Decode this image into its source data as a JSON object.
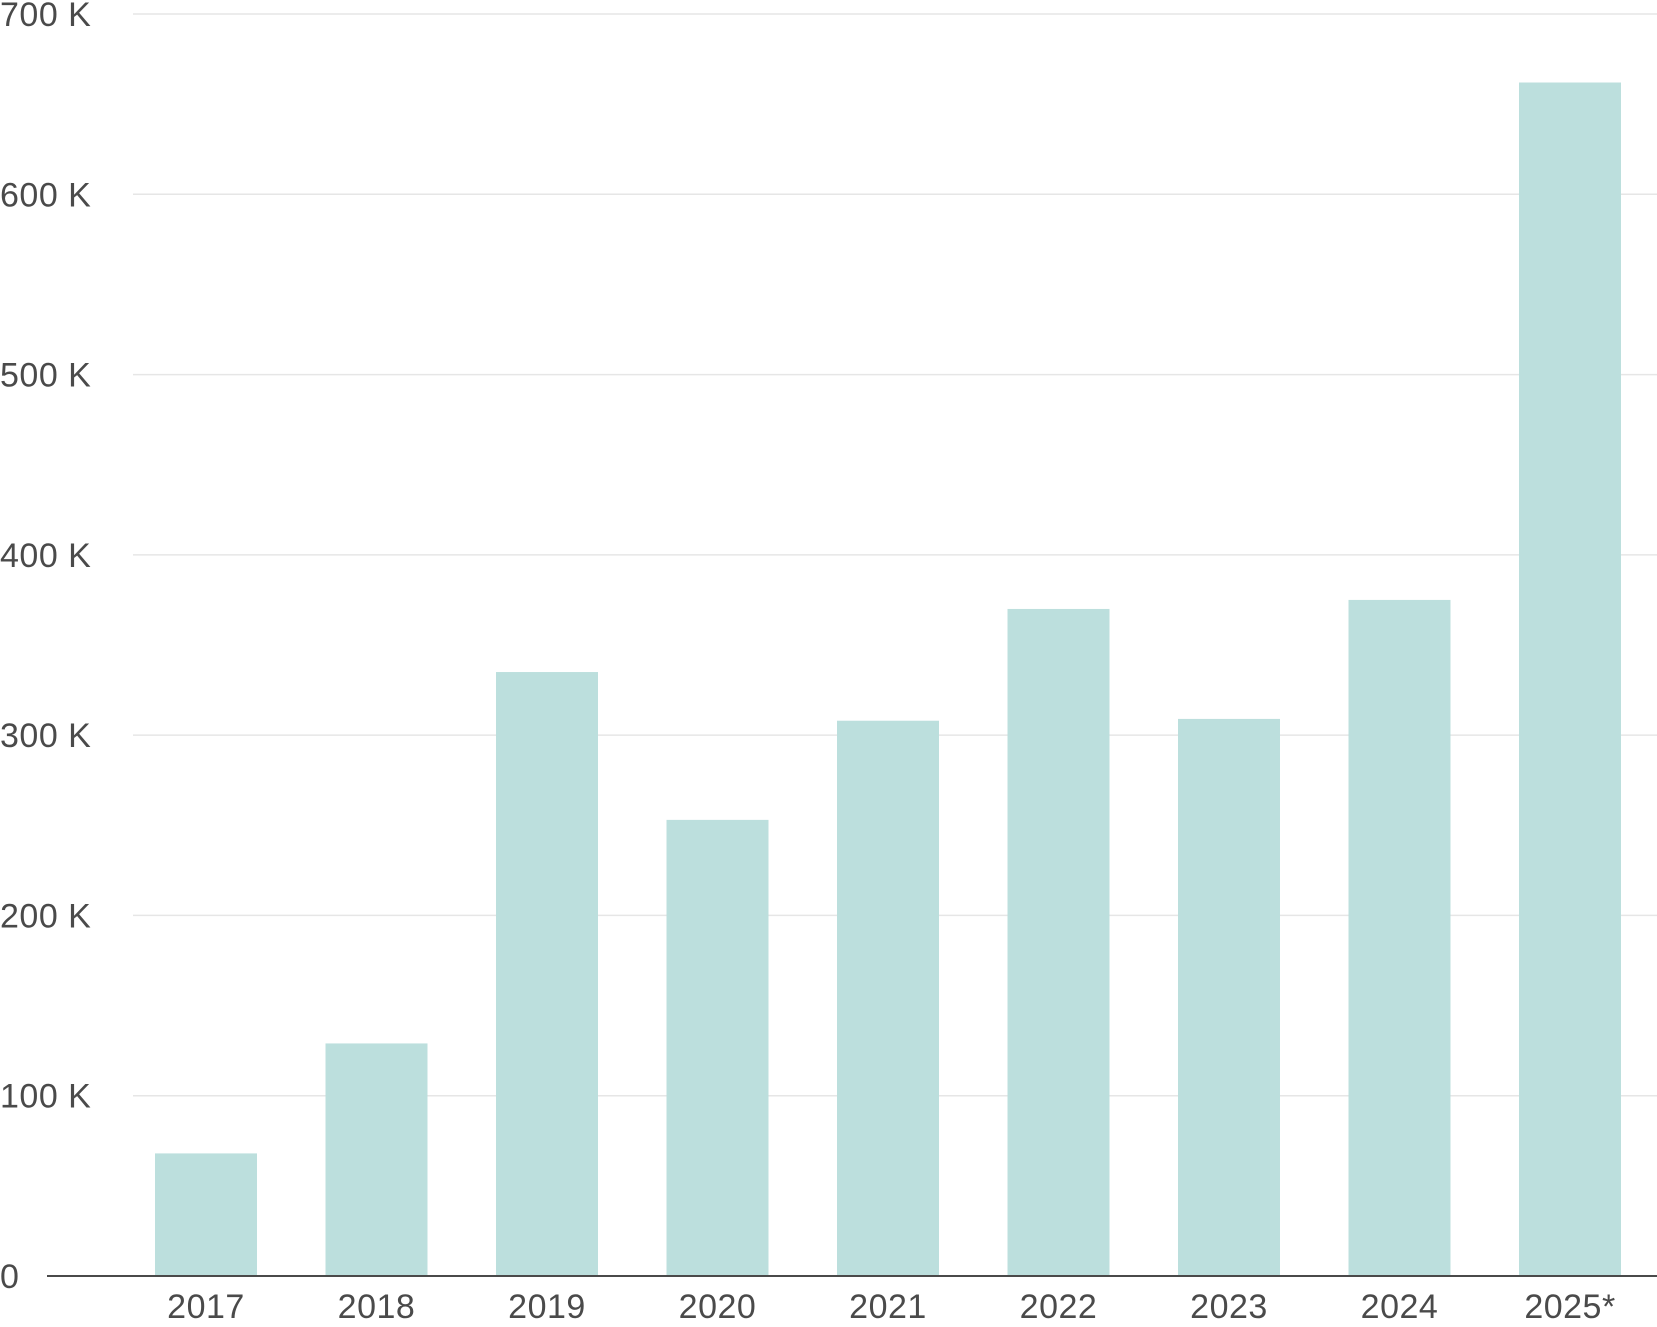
{
  "chart_data": {
    "type": "bar",
    "categories": [
      "2017",
      "2018",
      "2019",
      "2020",
      "2021",
      "2022",
      "2023",
      "2024",
      "2025*"
    ],
    "values": [
      68000,
      129000,
      335000,
      253000,
      308000,
      370000,
      309000,
      375000,
      662000
    ],
    "title": "",
    "xlabel": "",
    "ylabel": "",
    "ylim": [
      0,
      700000
    ],
    "yticks": [
      0,
      100000,
      200000,
      300000,
      400000,
      500000,
      600000,
      700000
    ],
    "ytick_labels": [
      "0",
      "100 K",
      "200 K",
      "300 K",
      "400 K",
      "500 K",
      "600 K",
      "700 K"
    ],
    "grid": true,
    "legend": "none",
    "colors": {
      "bar": "#bcdfdd",
      "grid": "#e6e6e6",
      "axis": "#4a4a4a",
      "text": "#4a4a4a"
    }
  }
}
